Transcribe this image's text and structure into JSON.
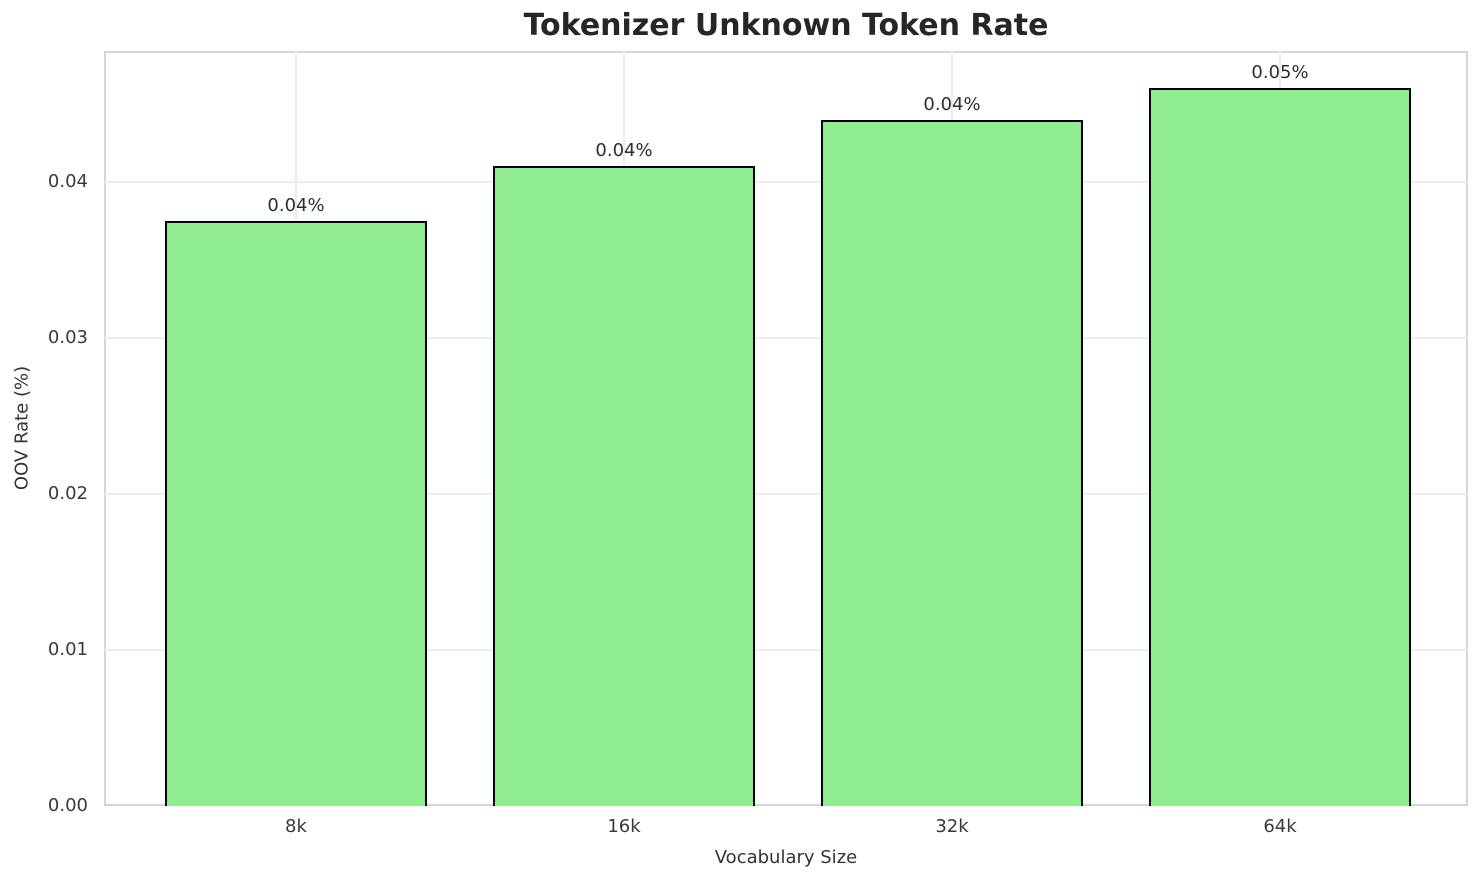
{
  "chart_data": {
    "type": "bar",
    "title": "Tokenizer Unknown Token Rate",
    "xlabel": "Vocabulary Size",
    "ylabel": "OOV Rate (%)",
    "categories": [
      "8k",
      "16k",
      "32k",
      "64k"
    ],
    "values": [
      0.0375,
      0.041,
      0.044,
      0.046
    ],
    "bar_labels": [
      "0.04%",
      "0.04%",
      "0.04%",
      "0.05%"
    ],
    "ylim": [
      0,
      0.0484
    ],
    "yticks": [
      0,
      0.01,
      0.02,
      0.03,
      0.04
    ],
    "ytick_labels": [
      "0.00",
      "0.01",
      "0.02",
      "0.03",
      "0.04"
    ],
    "grid": true,
    "legend_position": "none",
    "colors": {
      "bar_fill": "#90EE90",
      "bar_edge": "#000000",
      "grid_line": "#ececec",
      "axes_frame": "#d5d5d5",
      "tick_text": "#3a3a3a",
      "title_text": "#262626",
      "background": "#ffffff"
    }
  }
}
